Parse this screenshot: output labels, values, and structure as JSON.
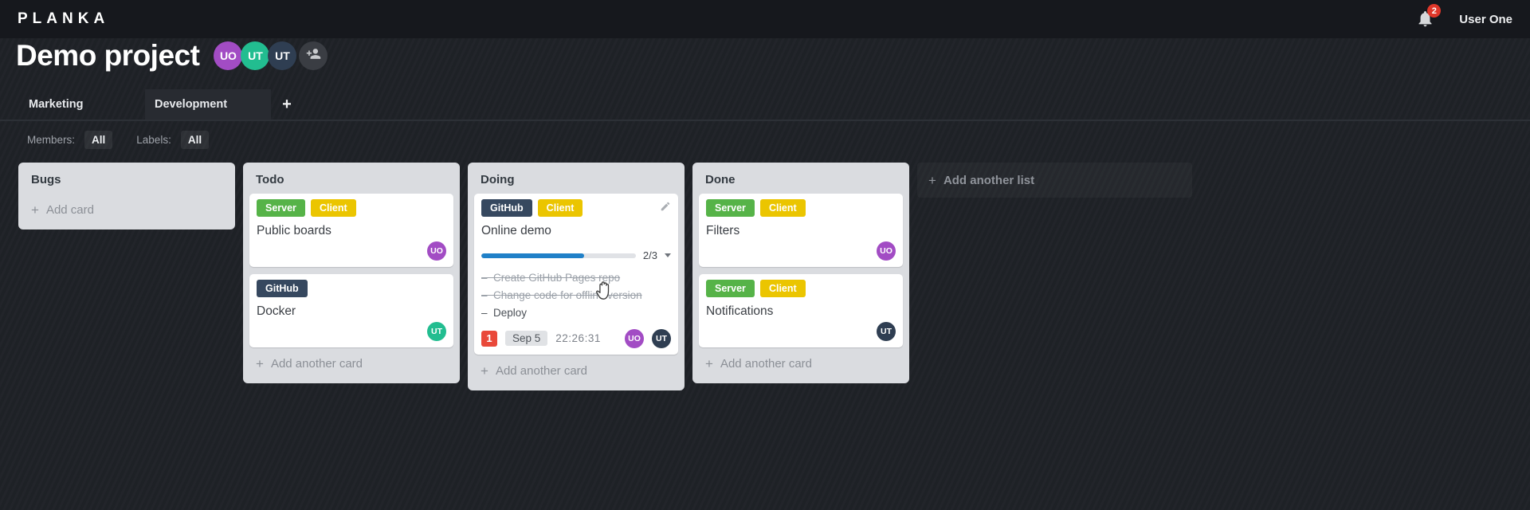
{
  "app": {
    "logo": "PLANKA",
    "user_name": "User One",
    "notification_count": "2"
  },
  "project": {
    "title": "Demo project",
    "members": [
      {
        "initials": "UO",
        "color": "#a24cc4"
      },
      {
        "initials": "UT",
        "color": "#22bd90"
      },
      {
        "initials": "UT",
        "color": "#2f3e52"
      }
    ]
  },
  "tabs": {
    "items": [
      {
        "label": "Marketing",
        "selected": false
      },
      {
        "label": "Development",
        "selected": true
      }
    ],
    "add_button": "+"
  },
  "filters": {
    "members_label": "Members:",
    "members_value": "All",
    "labels_label": "Labels:",
    "labels_value": "All"
  },
  "board": {
    "add_list_label": "Add another list",
    "lists": [
      {
        "name": "Bugs",
        "add_card_label": "Add card",
        "cards": []
      },
      {
        "name": "Todo",
        "add_card_label": "Add another card",
        "cards": [
          {
            "title": "Public boards",
            "labels": [
              {
                "text": "Server",
                "color": "#56b348"
              },
              {
                "text": "Client",
                "color": "#ebc500"
              }
            ],
            "members": [
              {
                "initials": "UO",
                "color": "#a24cc4"
              }
            ]
          },
          {
            "title": "Docker",
            "labels": [
              {
                "text": "GitHub",
                "color": "#36485f"
              }
            ],
            "members": [
              {
                "initials": "UT",
                "color": "#22bd90"
              }
            ]
          }
        ]
      },
      {
        "name": "Doing",
        "add_card_label": "Add another card",
        "cards": [
          {
            "title": "Online demo",
            "labels": [
              {
                "text": "GitHub",
                "color": "#36485f"
              },
              {
                "text": "Client",
                "color": "#ebc500"
              }
            ],
            "has_edit_icon": true,
            "progress": {
              "completed": 2,
              "total": 3,
              "label": "2/3",
              "color": "#2080c8"
            },
            "tasks": [
              {
                "text": "Create GitHub Pages repo",
                "done": true
              },
              {
                "text": "Change code for offline version",
                "done": true
              },
              {
                "text": "Deploy",
                "done": false
              }
            ],
            "notification_count": "1",
            "due_date": "Sep 5",
            "timer": "22:26:31",
            "members": [
              {
                "initials": "UO",
                "color": "#a24cc4"
              },
              {
                "initials": "UT",
                "color": "#2f3e52"
              }
            ]
          }
        ]
      },
      {
        "name": "Done",
        "add_card_label": "Add another card",
        "cards": [
          {
            "title": "Filters",
            "labels": [
              {
                "text": "Server",
                "color": "#56b348"
              },
              {
                "text": "Client",
                "color": "#ebc500"
              }
            ],
            "members": [
              {
                "initials": "UO",
                "color": "#a24cc4"
              }
            ]
          },
          {
            "title": "Notifications",
            "labels": [
              {
                "text": "Server",
                "color": "#56b348"
              },
              {
                "text": "Client",
                "color": "#ebc500"
              }
            ],
            "members": [
              {
                "initials": "UT",
                "color": "#2f3e52"
              }
            ]
          }
        ]
      }
    ]
  }
}
